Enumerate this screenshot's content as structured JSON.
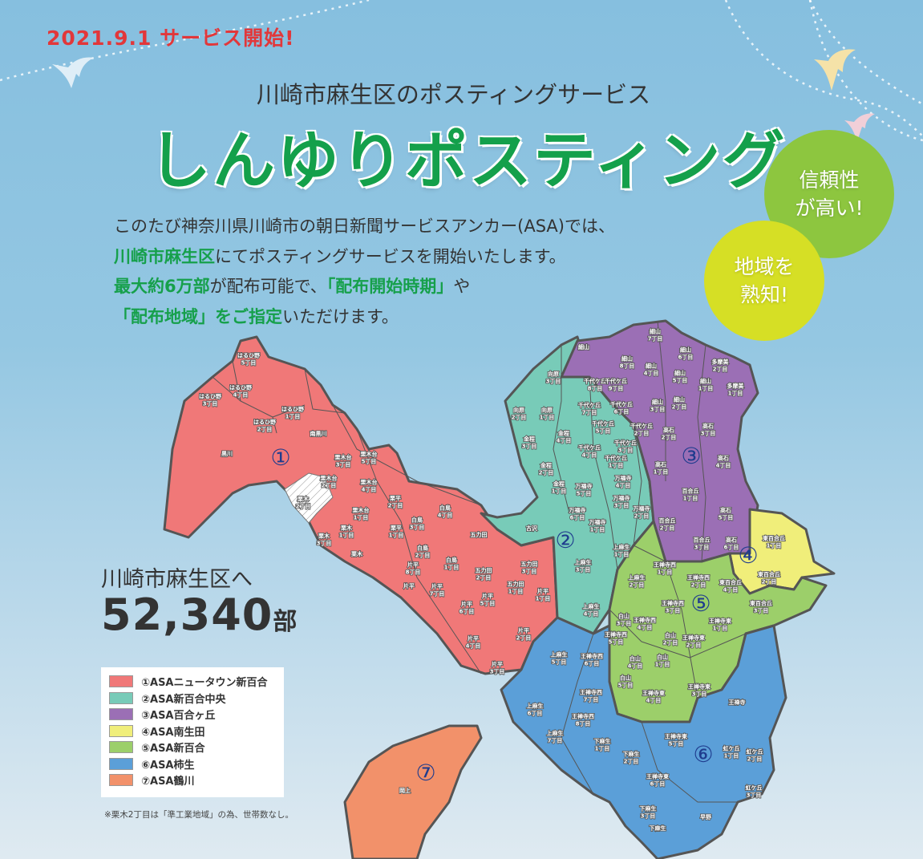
{
  "header": {
    "date_banner": "2021.9.1 サービス開始!",
    "subtitle": "川崎市麻生区のポスティングサービス",
    "title": "しんゆりポスティング"
  },
  "body": {
    "line1": "このたび神奈川県川崎市の朝日新聞サービスアンカー(ASA)では、",
    "line2_green": "川崎市麻生区",
    "line2_rest": "にてポスティングサービスを開始いたします。",
    "line3_green1": "最大約6万部",
    "line3_mid": "が配布可能で、",
    "line3_green2": "「配布開始時期」",
    "line3_end": "や",
    "line4_green": "「配布地域」をご指定",
    "line4_rest": "いただけます。"
  },
  "bubbles": {
    "reliability": "信頼性\nが高い!",
    "local": "地域を\n熟知!"
  },
  "circulation": {
    "label": "川崎市麻生区へ",
    "value": "52,340",
    "unit": "部"
  },
  "legend": [
    {
      "label": "①ASAニュータウン新百合",
      "color": "#f07878"
    },
    {
      "label": "②ASA新百合中央",
      "color": "#78cbb8"
    },
    {
      "label": "③ASA百合ヶ丘",
      "color": "#9b6fb5"
    },
    {
      "label": "④ASA南生田",
      "color": "#f0ee7a"
    },
    {
      "label": "⑤ASA新百合",
      "color": "#9ccf6a"
    },
    {
      "label": "⑥ASA柿生",
      "color": "#5b9fd8"
    },
    {
      "label": "⑦ASA鶴川",
      "color": "#f2916a"
    }
  ],
  "note": "※栗木2丁目は「準工業地域」の為、世帯数なし。",
  "map": {
    "zone_numbers": [
      "①",
      "②",
      "③",
      "④",
      "⑤",
      "⑥",
      "⑦"
    ],
    "areas": [
      "はるひ野\n5丁目",
      "はるひ野\n4丁目",
      "はるひ野\n3丁目",
      "はるひ野\n1丁目",
      "はるひ野\n2丁目",
      "黒川",
      "南黒川",
      "栗木台\n3丁目",
      "栗木台\n5丁目",
      "栗木台\n2丁目",
      "栗木\n2丁目",
      "栗木台\n4丁目",
      "栗木台\n1丁目",
      "栗平\n2丁目",
      "白鳥\n4丁目",
      "白鳥\n3丁目",
      "栗木\n1丁目",
      "栗木\n3丁目",
      "栗平\n1丁目",
      "五力田",
      "白鳥\n2丁目",
      "栗木",
      "白鳥\n1丁目",
      "五力田\n3丁目",
      "五力田\n2丁目",
      "片平\n8丁目",
      "片平",
      "片平\n7丁目",
      "片平\n5丁目",
      "五力田\n1丁目",
      "片平\n1丁目",
      "片平\n6丁目",
      "片平\n2丁目",
      "片平\n4丁目",
      "片平\n3丁目",
      "向原\n3丁目",
      "向原\n2丁目",
      "向原\n1丁目",
      "金程\n4丁目",
      "金程\n3丁目",
      "金程\n2丁目",
      "千代ケ丘\n8丁目",
      "千代ケ丘\n7丁目",
      "千代ケ丘\n5丁目",
      "千代ケ丘\n4丁目",
      "千代ケ丘\n1丁目",
      "金程\n1丁目",
      "万福寺\n5丁目",
      "万福寺\n4丁目",
      "万福寺\n3丁目",
      "万福寺\n6丁目",
      "万福寺\n1丁目",
      "古沢",
      "上麻生\n1丁目",
      "上麻生\n3丁目",
      "上麻生\n4丁目",
      "細山",
      "細山\n7丁目",
      "細山\n8丁目",
      "細山\n4丁目",
      "細山\n6丁目",
      "多摩美\n2丁目",
      "細山\n5丁目",
      "細山\n1丁目",
      "多摩美\n1丁目",
      "千代ケ丘\n9丁目",
      "千代ケ丘\n6丁目",
      "細山\n3丁目",
      "細山\n2丁目",
      "千代ケ丘\n2丁目",
      "千代ケ丘\n3丁目",
      "高石\n2丁目",
      "高石\n3丁目",
      "高石\n1丁目",
      "高石\n4丁目",
      "百合丘\n1丁目",
      "万福寺\n2丁目",
      "高石\n5丁目",
      "百合丘\n2丁目",
      "百合丘\n3丁目",
      "高石\n6丁目",
      "東百合丘\n1丁目",
      "東百合丘\n2丁目",
      "東百合丘\n4丁目",
      "王禅寺西\n1丁目",
      "上麻生\n2丁目",
      "王禅寺西\n2丁目",
      "王禅寺西\n3丁目",
      "東百合丘\n3丁目",
      "白山\n3丁目",
      "王禅寺西\n4丁目",
      "王禅寺東\n1丁目",
      "白山\n2丁目",
      "王禅寺東\n2丁目",
      "王禅寺西\n5丁目",
      "白山\n4丁目",
      "白山\n1丁目",
      "白山\n5丁目",
      "王禅寺東\n4丁目",
      "王禅寺東\n3丁目",
      "上麻生\n5丁目",
      "王禅寺西\n6丁目",
      "王禅寺",
      "上麻生\n6丁目",
      "王禅寺西\n7丁目",
      "王禅寺西\n8丁目",
      "上麻生\n7丁目",
      "下麻生\n1丁目",
      "王禅寺東\n5丁目",
      "下麻生\n2丁目",
      "虹ケ丘\n1丁目",
      "虹ケ丘\n2丁目",
      "王禅寺東\n6丁目",
      "虹ケ丘\n3丁目",
      "下麻生\n3丁目",
      "下麻生",
      "早野",
      "岡上"
    ]
  },
  "colors": {
    "title_green": "#14a04b",
    "date_red": "#e2373a",
    "bubble_green": "#8dc63f",
    "bubble_yellow": "#d6df25"
  }
}
